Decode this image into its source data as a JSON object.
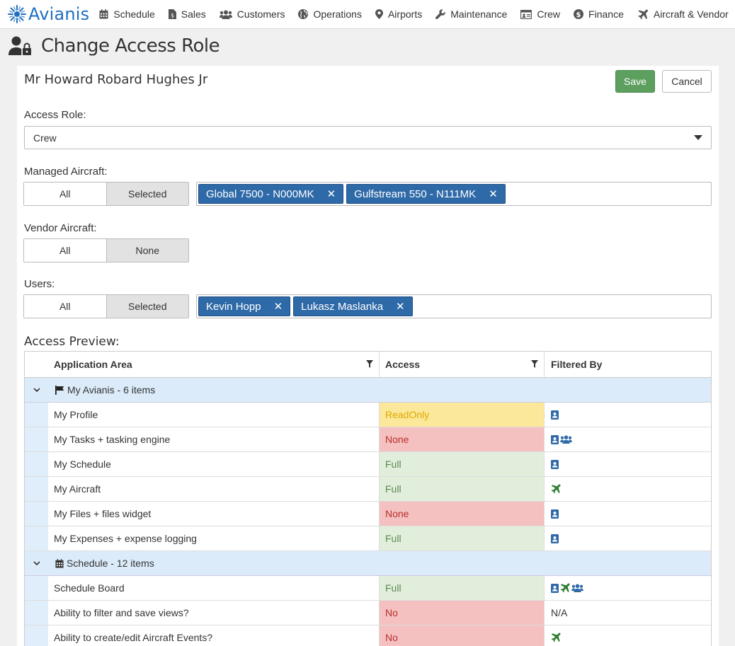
{
  "nav": {
    "brand": "Avianis",
    "items": [
      {
        "label": "Schedule",
        "icon": "calendar-icon"
      },
      {
        "label": "Sales",
        "icon": "file-dollar-icon"
      },
      {
        "label": "Customers",
        "icon": "users-icon"
      },
      {
        "label": "Operations",
        "icon": "globe-icon"
      },
      {
        "label": "Airports",
        "icon": "map-marker-icon"
      },
      {
        "label": "Maintenance",
        "icon": "wrench-icon"
      },
      {
        "label": "Crew",
        "icon": "id-card-icon"
      },
      {
        "label": "Finance",
        "icon": "dollar-circle-icon"
      },
      {
        "label": "Aircraft & Vendor",
        "icon": "plane-icon"
      }
    ]
  },
  "page": {
    "title": "Change Access Role",
    "person_name": "Mr Howard Robard Hughes Jr"
  },
  "actions": {
    "save": "Save",
    "cancel": "Cancel"
  },
  "form": {
    "access_role_label": "Access Role:",
    "access_role_value": "Crew",
    "managed_aircraft_label": "Managed Aircraft:",
    "managed_aircraft_options": [
      "All",
      "Selected"
    ],
    "managed_aircraft_tags": [
      "Global 7500 - N000MK",
      "Gulfstream 550 - N111MK"
    ],
    "vendor_aircraft_label": "Vendor Aircraft:",
    "vendor_aircraft_options": [
      "All",
      "None"
    ],
    "users_label": "Users:",
    "users_options": [
      "All",
      "Selected"
    ],
    "users_tags": [
      "Kevin Hopp",
      "Lukasz Maslanka"
    ]
  },
  "preview": {
    "title": "Access Preview:",
    "columns": [
      "Application Area",
      "Access",
      "Filtered By"
    ],
    "groups": [
      {
        "label": "My Avianis - 6 items",
        "icon": "flag-icon"
      },
      {
        "label": "Schedule - 12 items",
        "icon": "calendar-icon"
      }
    ],
    "rows": [
      {
        "area": "My Profile",
        "access": "ReadOnly",
        "filter": "person"
      },
      {
        "area": "My Tasks + tasking engine",
        "access": "None",
        "filter": "person-users"
      },
      {
        "area": "My Schedule",
        "access": "Full",
        "filter": "person"
      },
      {
        "area": "My Aircraft",
        "access": "Full",
        "filter": "plane"
      },
      {
        "area": "My Files + files widget",
        "access": "None",
        "filter": "person"
      },
      {
        "area": "My Expenses + expense logging",
        "access": "Full",
        "filter": "person"
      },
      {
        "area": "Schedule Board",
        "access": "Full",
        "filter": "person-plane-users"
      },
      {
        "area": "Ability to filter and save views?",
        "access": "No",
        "filter": "N/A"
      },
      {
        "area": "Ability to create/edit Aircraft Events?",
        "access": "No",
        "filter": "plane"
      }
    ]
  },
  "colors": {
    "brand": "#1f6fbf",
    "tag": "#2f6aa8",
    "save": "#5d9f5f",
    "group_bg": "#dcebfa"
  }
}
